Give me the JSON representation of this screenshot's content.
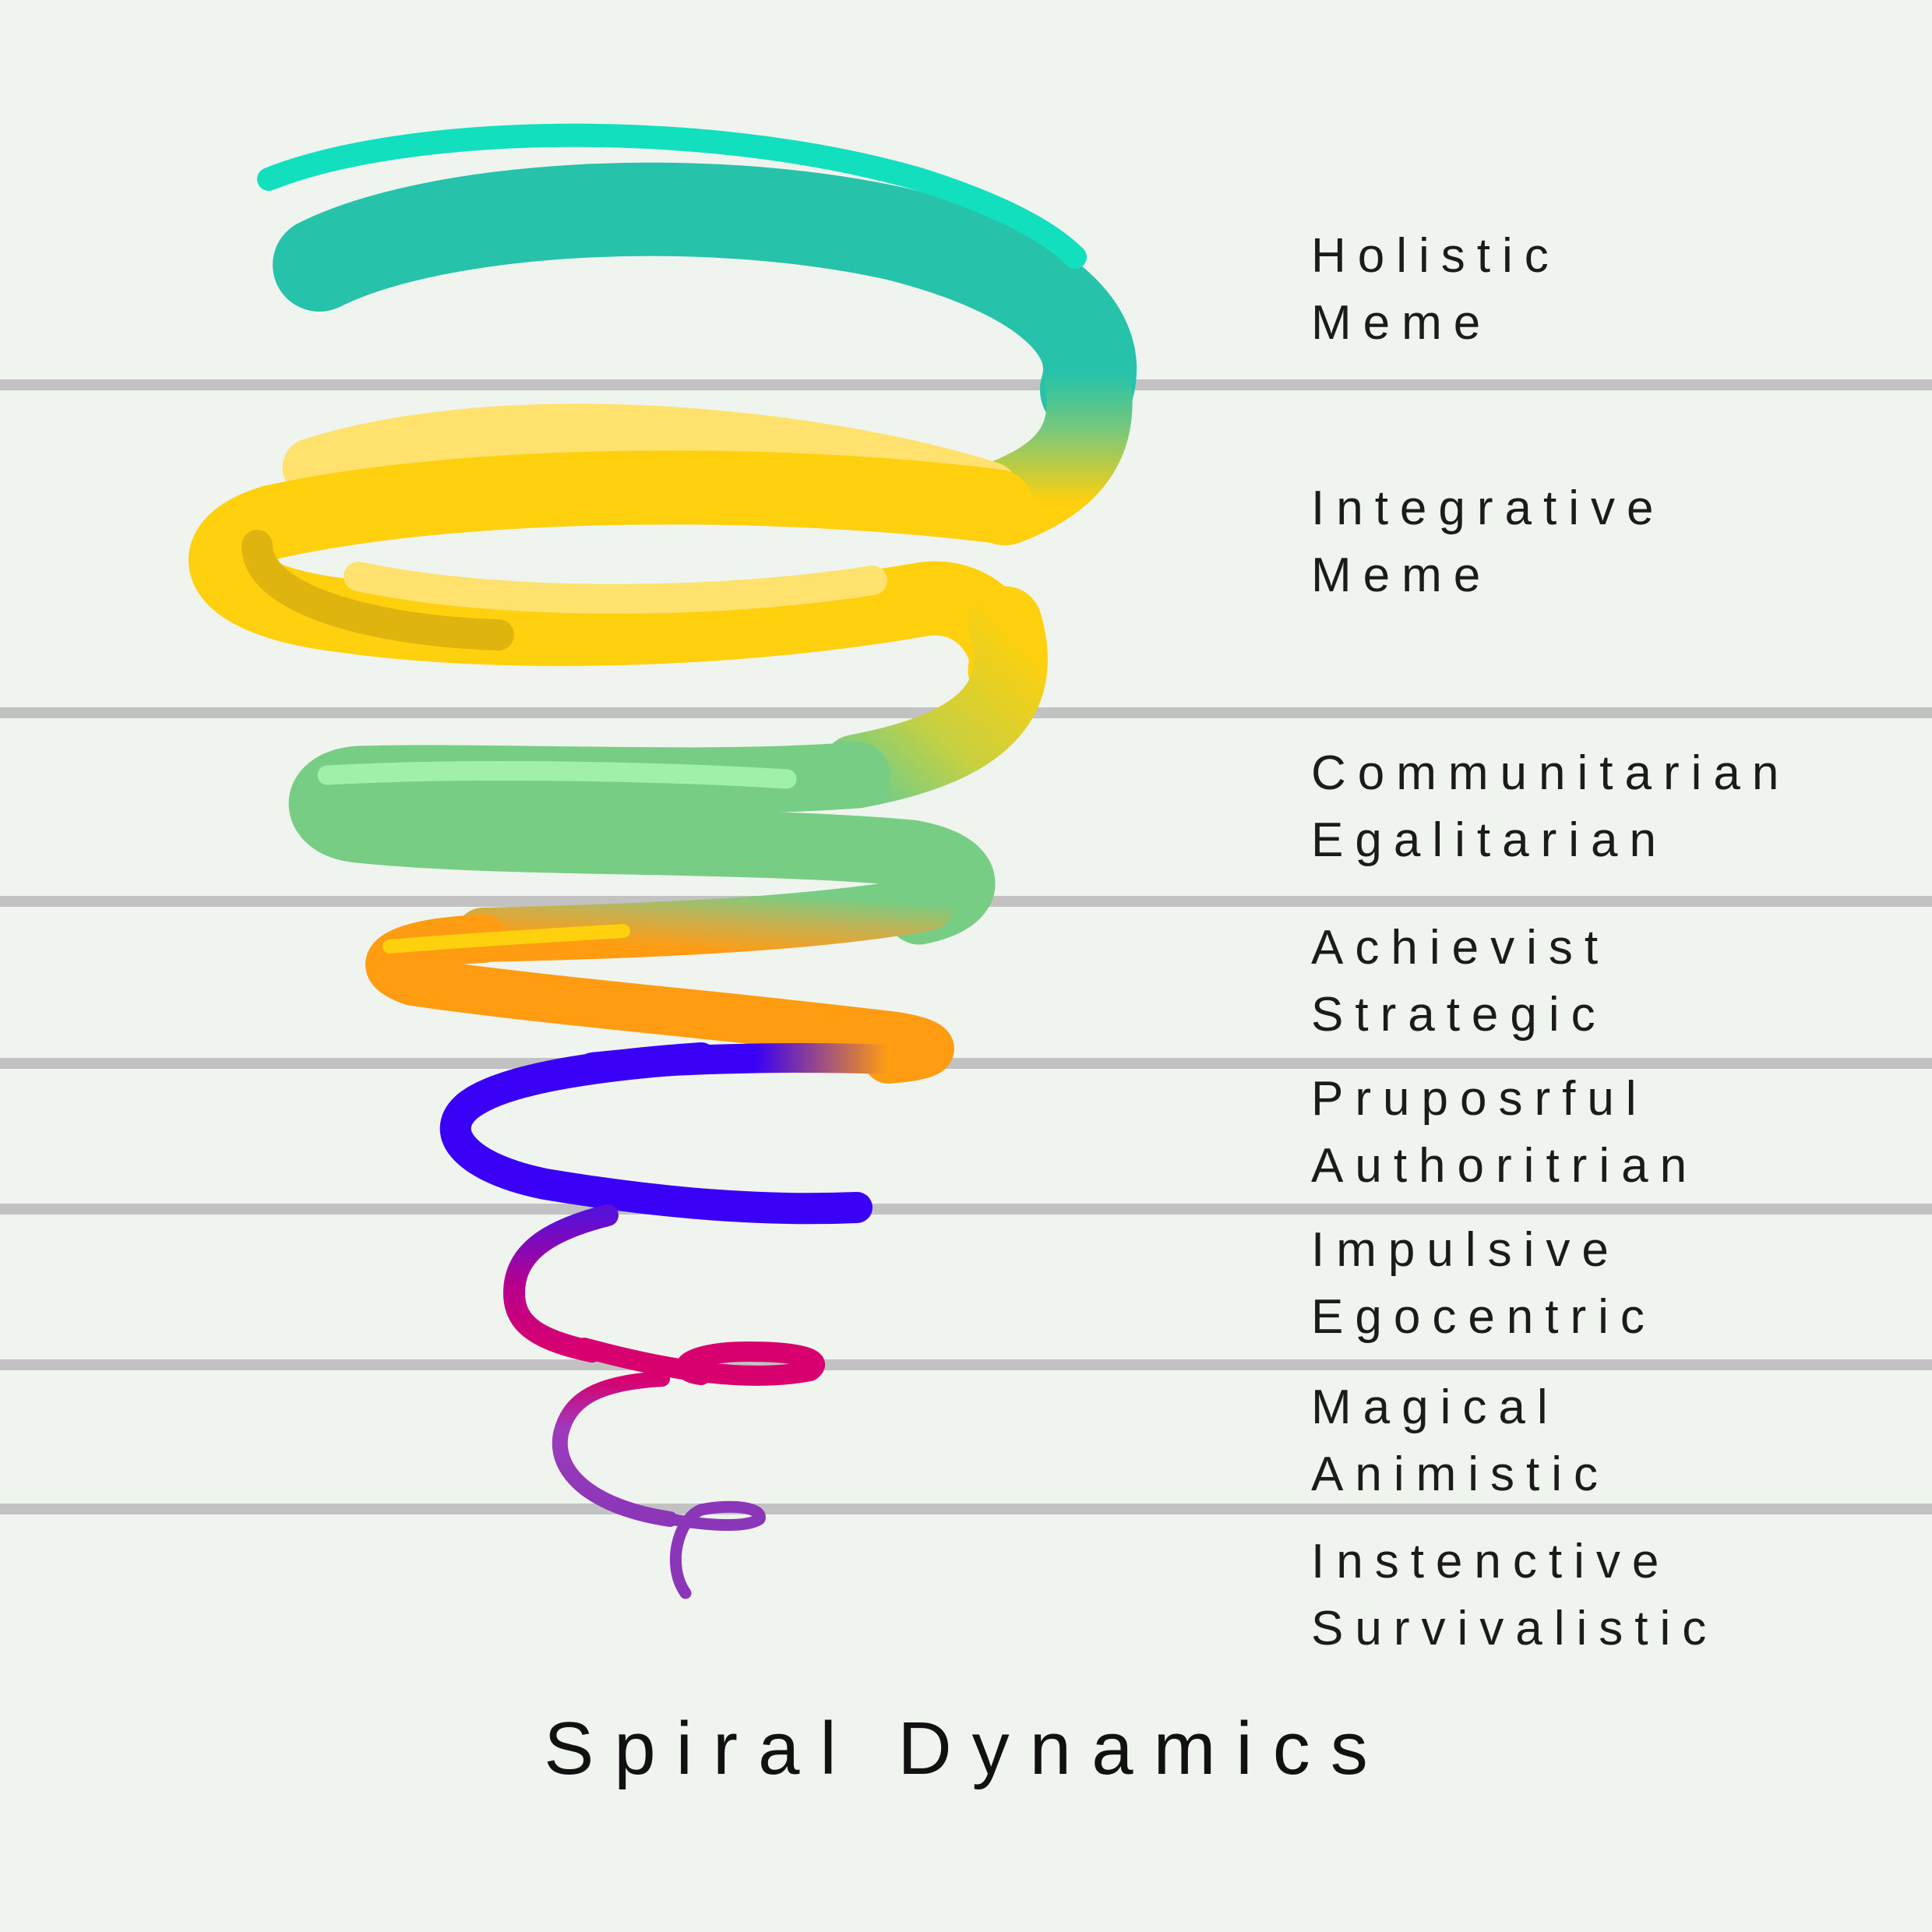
{
  "title": "Spiral Dynamics",
  "levels": [
    {
      "line1": "Holistic",
      "line2": "Meme",
      "color": "#1fc7ad"
    },
    {
      "line1": "Integrative",
      "line2": "Meme",
      "color": "#ffd00d"
    },
    {
      "line1": "Communitarian",
      "line2": "Egalitarian",
      "color": "#78cd84"
    },
    {
      "line1": "Achievist",
      "line2": "Strategic",
      "color": "#ff9c12"
    },
    {
      "line1": "Pruposrful",
      "line2": "Authoritrian",
      "color": "#3a00f5"
    },
    {
      "line1": "Impulsive",
      "line2": "Egocentric",
      "color": "#d8006f"
    },
    {
      "line1": "Magical",
      "line2": "Animistic",
      "color": "#8b36b8"
    },
    {
      "line1": "Instenctive",
      "line2": "Survivalistic",
      "color": "#8b36b8"
    }
  ],
  "divider_color": "#c2c2c2"
}
